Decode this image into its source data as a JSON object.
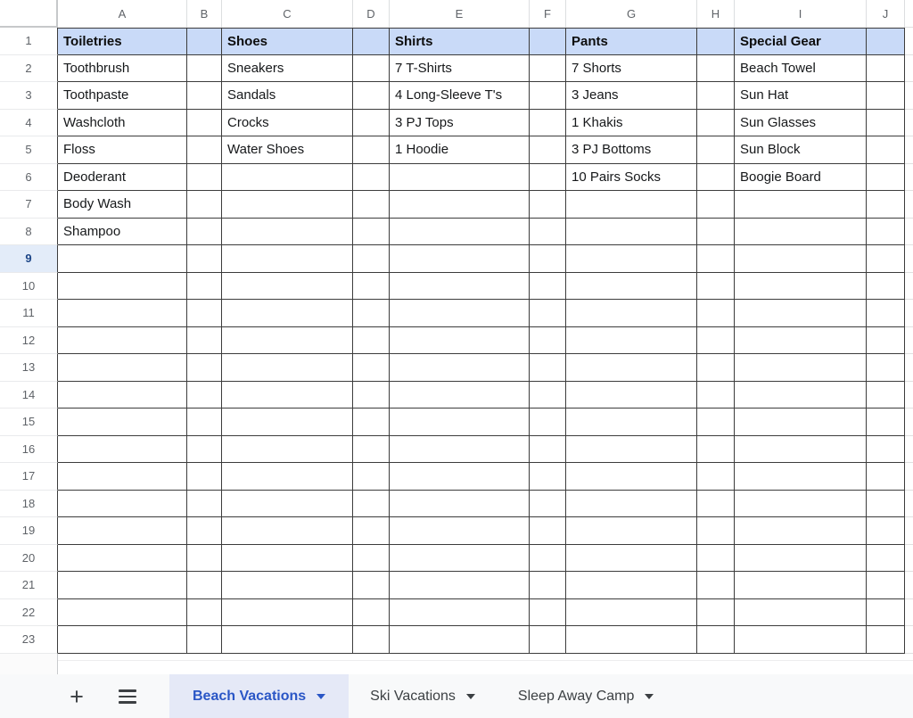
{
  "sheet": {
    "columns": [
      "A",
      "B",
      "C",
      "D",
      "E",
      "F",
      "G",
      "H",
      "I",
      "J"
    ],
    "row_count": 23,
    "selected_row": 9,
    "cells": {
      "A1": "Toiletries",
      "C1": "Shoes",
      "E1": "Shirts",
      "G1": "Pants",
      "I1": "Special Gear",
      "A2": "Toothbrush",
      "A3": "Toothpaste",
      "A4": "Washcloth",
      "A5": "Floss",
      "A6": "Deoderant",
      "A7": "Body Wash",
      "A8": "Shampoo",
      "C2": "Sneakers",
      "C3": "Sandals",
      "C4": "Crocks",
      "C5": "Water Shoes",
      "E2": "7 T-Shirts",
      "E3": "4 Long-Sleeve T's",
      "E4": "3 PJ Tops",
      "E5": "1 Hoodie",
      "G2": "7 Shorts",
      "G3": "3 Jeans",
      "G4": "1 Khakis",
      "G5": "3 PJ Bottoms",
      "G6": "10 Pairs Socks",
      "I2": "Beach Towel",
      "I3": "Sun Hat",
      "I4": "Sun Glasses",
      "I5": "Sun Block",
      "I6": "Boogie Board"
    }
  },
  "colors": {
    "header_row_fill": "#c9daf8",
    "grid_border": "#3c3c3c",
    "light_border": "#e0e0e0",
    "header_text": "#5f6368",
    "cell_text": "#16181a",
    "selected_row_fill": "#e3ecf9",
    "selected_row_text": "#1c4587",
    "tabbar_fill": "#f8f9fa",
    "active_tab_fill": "#e5e9f7",
    "active_tab_text": "#2a56c6",
    "inactive_tab_text": "#3c4043"
  },
  "tabbar": {
    "add_sheet_label": "+",
    "tabs": [
      {
        "label": "Beach Vacations",
        "active": true
      },
      {
        "label": "Ski Vacations",
        "active": false
      },
      {
        "label": "Sleep Away Camp",
        "active": false
      }
    ]
  }
}
